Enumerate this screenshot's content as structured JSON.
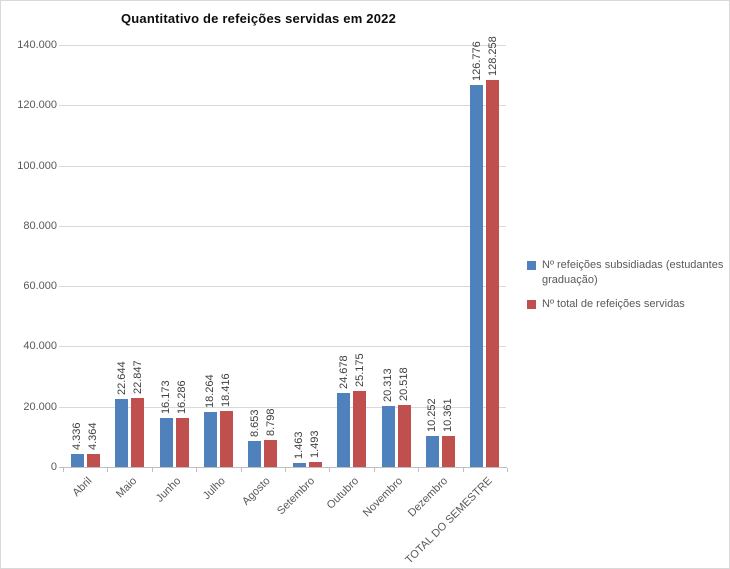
{
  "chart_data": {
    "type": "bar",
    "title": "Quantitativo de refeições servidas em 2022",
    "categories": [
      "Abril",
      "Maio",
      "Junho",
      "Julho",
      "Agosto",
      "Setembro",
      "Outubro",
      "Novembro",
      "Dezembro",
      "TOTAL DO SEMESTRE"
    ],
    "series": [
      {
        "name": "Nº refeições subsidiadas (estudantes graduação)",
        "color": "#4F81BD",
        "values": [
          4336,
          22644,
          16173,
          18264,
          8653,
          1463,
          24678,
          20313,
          10252,
          126776
        ],
        "value_labels": [
          "4.336",
          "22.644",
          "16.173",
          "18.264",
          "8.653",
          "1.463",
          "24.678",
          "20.313",
          "10.252",
          "126.776"
        ]
      },
      {
        "name": "Nº total de refeições servidas",
        "color": "#C0504D",
        "values": [
          4364,
          22847,
          16286,
          18416,
          8798,
          1493,
          25175,
          20518,
          10361,
          128258
        ],
        "value_labels": [
          "4.364",
          "22.847",
          "16.286",
          "18.416",
          "8.798",
          "1.493",
          "25.175",
          "20.518",
          "10.361",
          "128.258"
        ]
      }
    ],
    "ylim": [
      0,
      140000
    ],
    "ytick_interval": 20000,
    "ytick_labels": [
      "0",
      "20.000",
      "40.000",
      "60.000",
      "80.000",
      "100.000",
      "120.000",
      "140.000"
    ],
    "grid": true,
    "legend_position": "right",
    "xlabel": "",
    "ylabel": ""
  }
}
